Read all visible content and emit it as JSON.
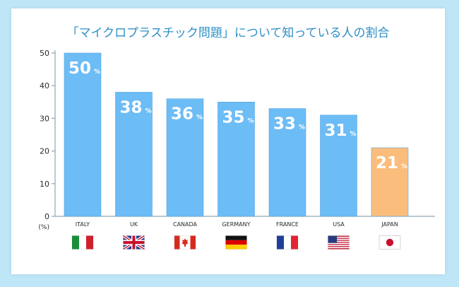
{
  "chart_data": {
    "type": "bar",
    "title": "「マイクロプラスチック問題」について知っている人の割合",
    "categories": [
      "ITALY",
      "UK",
      "CANADA",
      "GERMANY",
      "FRANCE",
      "USA",
      "JAPAN"
    ],
    "values": [
      50,
      38,
      36,
      35,
      33,
      31,
      21
    ],
    "value_labels": [
      "50",
      "38",
      "36",
      "35",
      "33",
      "31",
      "21"
    ],
    "value_unit": "%",
    "y_ticks": [
      "0",
      "10",
      "20",
      "30",
      "40",
      "50"
    ],
    "ylabel": "(%)",
    "ylim": [
      0,
      50
    ],
    "grid": false,
    "legend": "none",
    "flags": [
      "italy-flag-icon",
      "uk-flag-icon",
      "canada-flag-icon",
      "germany-flag-icon",
      "france-flag-icon",
      "usa-flag-icon",
      "japan-flag-icon"
    ],
    "colors": {
      "bar": "#6cbcf6",
      "bar_highlight": "#fbbd7c",
      "title": "#2e8fc6",
      "axis": "#8ea6b4",
      "tick_text": "#2a2a2a",
      "value_text": "#ffffff",
      "background": "#bfe6f6"
    },
    "highlight_index": 6
  }
}
